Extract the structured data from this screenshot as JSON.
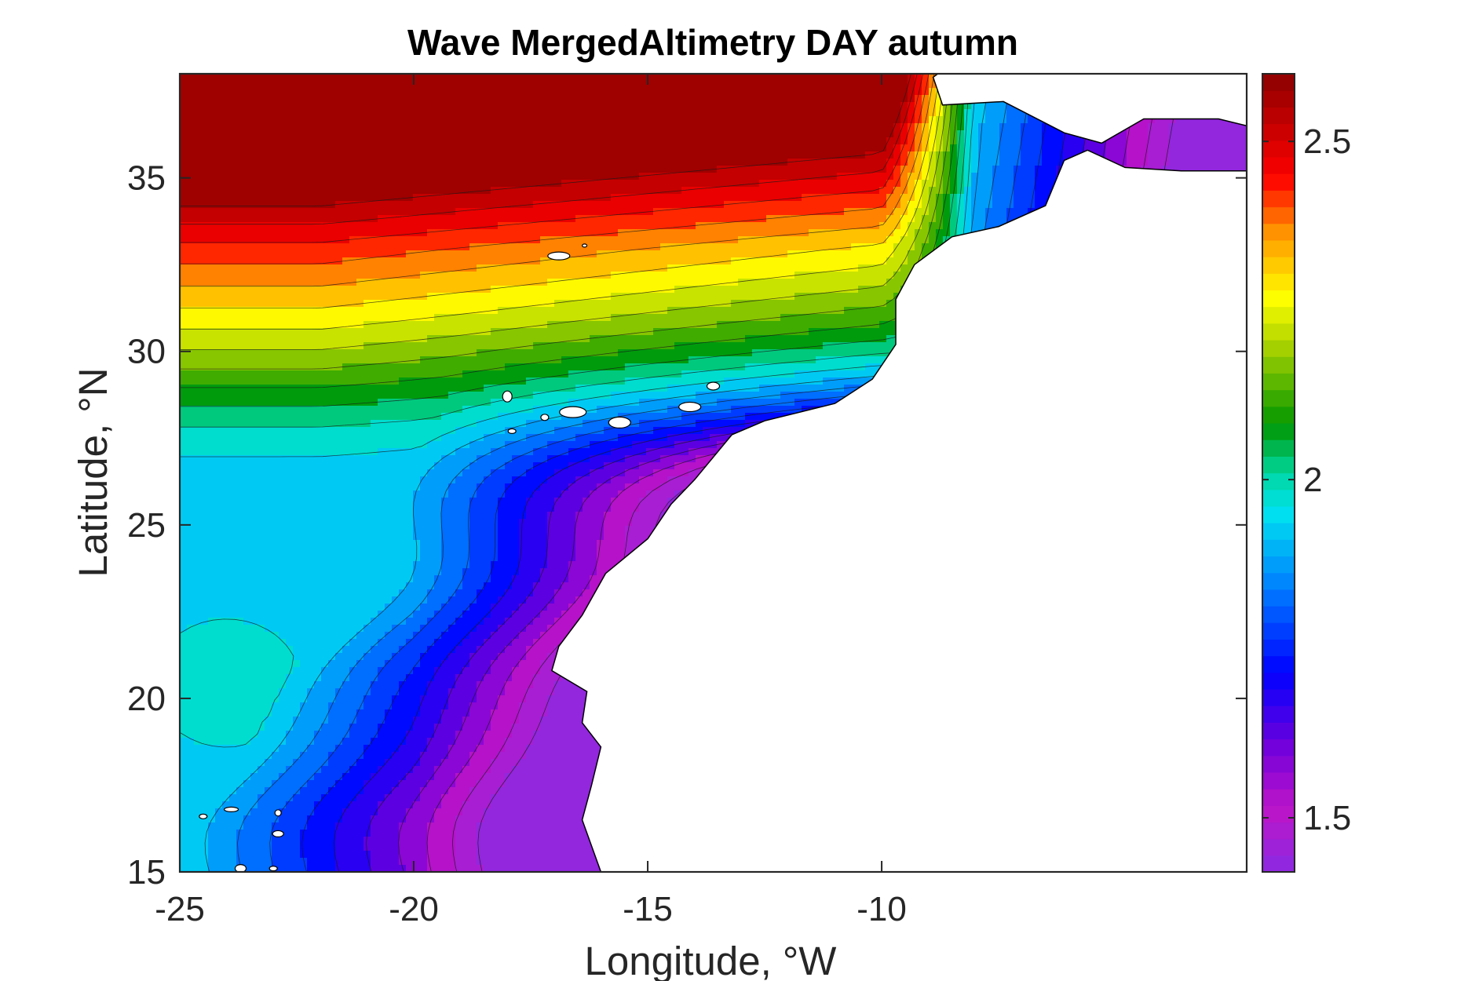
{
  "chart_data": {
    "type": "heatmap",
    "title": "Wave MergedAltimetry DAY autumn",
    "xlabel": "Longitude, °W",
    "ylabel": "Latitude, °N",
    "xlim": [
      -25,
      -2.2
    ],
    "ylim": [
      15,
      38
    ],
    "x_ticks": [
      -25,
      -20,
      -15,
      -10
    ],
    "x_tick_labels": [
      "-25",
      "-20",
      "-15",
      "-10"
    ],
    "y_ticks": [
      15,
      20,
      25,
      30,
      35
    ],
    "y_tick_labels": [
      "15",
      "20",
      "25",
      "30",
      "35"
    ],
    "colorbar": {
      "range": [
        1.42,
        2.6
      ],
      "ticks": [
        1.5,
        2,
        2.5
      ],
      "tick_labels": [
        "1.5",
        "2",
        "2.5"
      ],
      "colormap": "rainbow"
    },
    "contour_levels": [
      1.45,
      1.5,
      1.55,
      1.6,
      1.65,
      1.7,
      1.75,
      1.8,
      1.85,
      1.9,
      1.95,
      2.0,
      2.05,
      2.1,
      2.15,
      2.2,
      2.25,
      2.3,
      2.35,
      2.4,
      2.45,
      2.5,
      2.55
    ],
    "grid": false
  }
}
